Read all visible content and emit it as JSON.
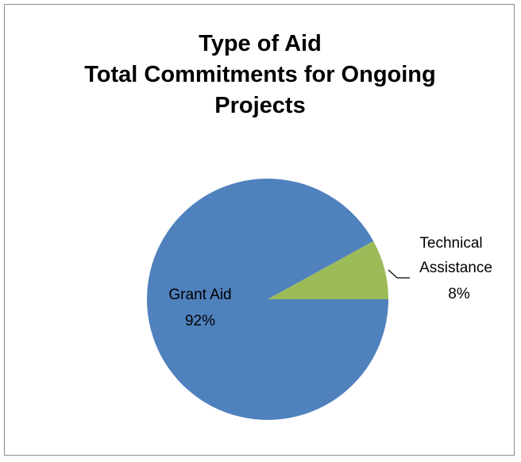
{
  "chart_data": {
    "type": "pie",
    "title_lines": [
      "Type of Aid",
      "Total Commitments for Ongoing",
      "Projects"
    ],
    "slices": [
      {
        "label_lines": [
          "Technical",
          "Assistance"
        ],
        "pct_label": "8%",
        "value": 8,
        "color": "#9bbb59"
      },
      {
        "label_lines": [
          "Grant Aid"
        ],
        "pct_label": "92%",
        "value": 92,
        "color": "#4f81bd"
      }
    ],
    "legend": "none"
  }
}
